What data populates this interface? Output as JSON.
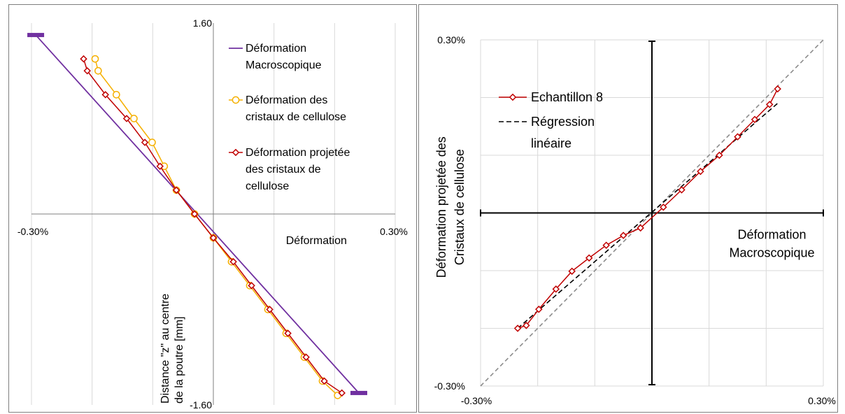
{
  "colors": {
    "macro": "#7030a0",
    "cristaux": "#f5b000",
    "projetee": "#c00000",
    "regression": "#000000",
    "identity": "#8c8c8c",
    "grid": "#d9d9d9",
    "axis": "#000000"
  },
  "chart_data": [
    {
      "type": "line",
      "orientation": "x = strain, y = depth",
      "xlim": [
        -0.3,
        0.3
      ],
      "ylim": [
        -1.6,
        1.6
      ],
      "x_tick_labels": [
        "-0.30%",
        "0.30%"
      ],
      "y_tick_labels": [
        "1.60",
        "-1.60"
      ],
      "xlabel": "Déformation",
      "ylabel_lines": [
        "Distance  \"z\" au centre",
        "de la poutre [mm]"
      ],
      "legend_placement": "top-right",
      "grid": "vertical lines",
      "series": [
        {
          "name_lines": [
            "Déformation",
            "Macroscopique"
          ],
          "marker": "none",
          "color_key": "macro",
          "x": [
            -0.293,
            0.24
          ],
          "y": [
            1.5,
            -1.5
          ],
          "end_caps": true
        },
        {
          "name_lines": [
            "Déformation des",
            "cristaux de cellulose"
          ],
          "marker": "circle",
          "color_key": "cristaux",
          "x": [
            -0.195,
            -0.19,
            -0.16,
            -0.131,
            -0.101,
            -0.081,
            -0.061,
            -0.031,
            0.0,
            0.03,
            0.06,
            0.09,
            0.12,
            0.15,
            0.18,
            0.205
          ],
          "y": [
            1.3,
            1.2,
            1.0,
            0.8,
            0.6,
            0.4,
            0.2,
            0.0,
            -0.2,
            -0.4,
            -0.6,
            -0.8,
            -1.0,
            -1.2,
            -1.4,
            -1.52
          ]
        },
        {
          "name_lines": [
            "Déformation projetée",
            "des cristaux de",
            "cellulose"
          ],
          "marker": "diamond",
          "color_key": "projetee",
          "x": [
            -0.214,
            -0.208,
            -0.178,
            -0.143,
            -0.113,
            -0.088,
            -0.061,
            -0.031,
            0.0,
            0.033,
            0.063,
            0.093,
            0.123,
            0.153,
            0.183,
            0.212
          ],
          "y": [
            1.3,
            1.2,
            1.0,
            0.8,
            0.6,
            0.4,
            0.2,
            0.0,
            -0.2,
            -0.4,
            -0.6,
            -0.8,
            -1.0,
            -1.2,
            -1.4,
            -1.5
          ]
        }
      ]
    },
    {
      "type": "line",
      "xlim": [
        -0.3,
        0.3
      ],
      "ylim": [
        -0.3,
        0.3
      ],
      "x_tick_labels": [
        "-0.30%",
        "0.30%"
      ],
      "y_tick_labels": [
        "0.30%",
        "-0.30%"
      ],
      "xlabel_lines": [
        "Déformation",
        "Macroscopique"
      ],
      "ylabel_lines": [
        "Déformation projetée  des",
        "Cristaux de cellulose"
      ],
      "legend_placement": "top-left",
      "grid": "gridlines every 0.1%",
      "series": [
        {
          "name": "Echantillon 8",
          "marker": "diamond",
          "color_key": "projetee",
          "x": [
            -0.235,
            -0.22,
            -0.198,
            -0.168,
            -0.14,
            -0.11,
            -0.08,
            -0.05,
            -0.02,
            0.02,
            0.052,
            0.085,
            0.118,
            0.15,
            0.18,
            0.206,
            0.22
          ],
          "y": [
            -0.2,
            -0.195,
            -0.167,
            -0.132,
            -0.101,
            -0.078,
            -0.056,
            -0.039,
            -0.026,
            0.01,
            0.04,
            0.072,
            0.1,
            0.132,
            0.162,
            0.188,
            0.215
          ]
        },
        {
          "name_lines": [
            "Régression",
            "linéaire"
          ],
          "marker": "none",
          "color_key": "regression",
          "style": "dashed",
          "x": [
            -0.235,
            0.22
          ],
          "y": [
            -0.2,
            0.19
          ]
        }
      ],
      "identity_line": {
        "x": [
          -0.3,
          0.3
        ],
        "y": [
          -0.3,
          0.3
        ],
        "style": "dashed",
        "color_key": "identity"
      }
    }
  ]
}
